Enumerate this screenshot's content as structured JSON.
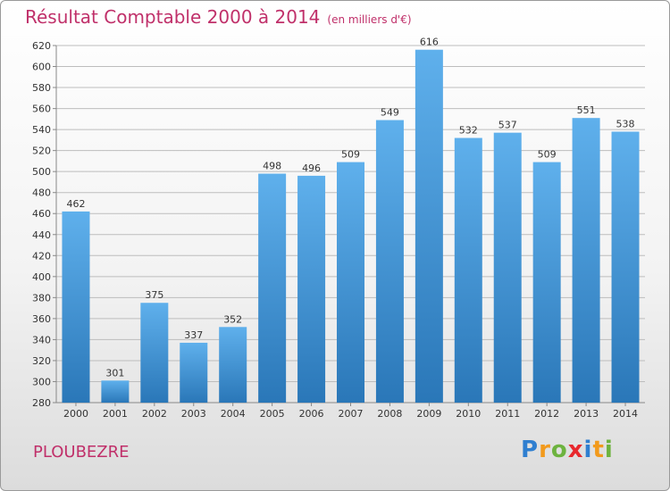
{
  "title": "Résultat Comptable 2000 à 2014",
  "unit_note": "(en milliers d'€)",
  "commune": "PLOUBEZRE",
  "brand": {
    "letters": [
      "P",
      "r",
      "o",
      "x",
      "i",
      "t",
      "i"
    ],
    "colors": [
      "#2f7fd0",
      "#f29a1c",
      "#6db33f",
      "#e8282d",
      "#2f7fd0",
      "#f29a1c",
      "#6db33f"
    ]
  },
  "colors": {
    "accent": "#c0306a",
    "bar_light": "#5fb0ec",
    "bar_dark": "#2a77b8",
    "grid": "#bdbdbd",
    "axis_text": "#333333"
  },
  "chart_data": {
    "type": "bar",
    "categories": [
      "2000",
      "2001",
      "2002",
      "2003",
      "2004",
      "2005",
      "2006",
      "2007",
      "2008",
      "2009",
      "2010",
      "2011",
      "2012",
      "2013",
      "2014"
    ],
    "values": [
      462,
      301,
      375,
      337,
      352,
      498,
      496,
      509,
      549,
      616,
      532,
      537,
      509,
      551,
      538
    ],
    "ylim": [
      280,
      620
    ],
    "yticks": [
      280,
      300,
      320,
      340,
      360,
      380,
      400,
      420,
      440,
      460,
      480,
      500,
      520,
      540,
      560,
      580,
      600,
      620
    ],
    "grid": true,
    "legend": "none",
    "title": "Résultat Comptable 2000 à 2014",
    "xlabel": "",
    "ylabel": ""
  }
}
